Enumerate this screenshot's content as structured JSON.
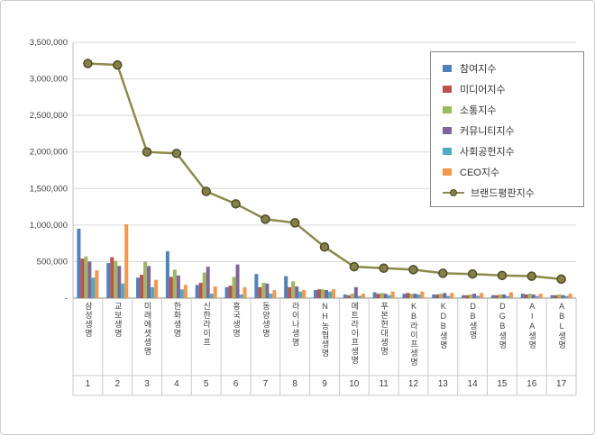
{
  "chart_data": {
    "type": "bar",
    "title": "",
    "categories": [
      "삼성생명",
      "교보생명",
      "미래에셋생명",
      "한화생명",
      "신한라이프",
      "흥국생명",
      "동양생명",
      "라이나생명",
      "NH농협생명",
      "메트라이프생명",
      "푸본현대생명",
      "KB라이프생명",
      "KDB생명",
      "DB생명",
      "DGB생명",
      "AIA생명",
      "ABL생명"
    ],
    "ranks": [
      "1",
      "2",
      "3",
      "4",
      "5",
      "6",
      "7",
      "8",
      "9",
      "10",
      "11",
      "12",
      "13",
      "14",
      "15",
      "16",
      "17"
    ],
    "bar_series": [
      {
        "name": "참여지수",
        "color": "#4F81BD",
        "values": [
          950000,
          480000,
          280000,
          640000,
          180000,
          150000,
          330000,
          300000,
          110000,
          50000,
          80000,
          60000,
          50000,
          40000,
          40000,
          60000,
          40000
        ]
      },
      {
        "name": "미디어지수",
        "color": "#C0504D",
        "values": [
          540000,
          560000,
          320000,
          290000,
          210000,
          170000,
          150000,
          150000,
          120000,
          40000,
          60000,
          70000,
          50000,
          40000,
          40000,
          50000,
          40000
        ]
      },
      {
        "name": "소통지수",
        "color": "#9BBB59",
        "values": [
          570000,
          510000,
          500000,
          390000,
          350000,
          290000,
          210000,
          230000,
          120000,
          60000,
          70000,
          60000,
          60000,
          50000,
          50000,
          60000,
          50000
        ]
      },
      {
        "name": "커뮤니티지수",
        "color": "#8064A2",
        "values": [
          500000,
          440000,
          440000,
          310000,
          430000,
          460000,
          200000,
          160000,
          110000,
          150000,
          60000,
          60000,
          70000,
          60000,
          50000,
          50000,
          40000
        ]
      },
      {
        "name": "사회공헌지수",
        "color": "#4BACC6",
        "values": [
          280000,
          200000,
          150000,
          120000,
          60000,
          50000,
          60000,
          90000,
          90000,
          30000,
          40000,
          50000,
          30000,
          30000,
          30000,
          30000,
          30000
        ]
      },
      {
        "name": "CEO지수",
        "color": "#F79646",
        "values": [
          380000,
          1010000,
          250000,
          180000,
          160000,
          150000,
          110000,
          110000,
          120000,
          60000,
          90000,
          90000,
          70000,
          70000,
          80000,
          60000,
          60000
        ]
      }
    ],
    "line_series": {
      "name": "브랜드평판지수",
      "color": "#8C8A4B",
      "marker_fill": "#848146",
      "marker_stroke": "#4e4c29",
      "values": [
        3210000,
        3190000,
        2000000,
        1980000,
        1460000,
        1290000,
        1080000,
        1030000,
        700000,
        430000,
        410000,
        390000,
        340000,
        330000,
        310000,
        300000,
        260000
      ]
    },
    "yticks": [
      {
        "value": 0,
        "label": "-"
      },
      {
        "value": 500000,
        "label": "500,000"
      },
      {
        "value": 1000000,
        "label": "1,000,000"
      },
      {
        "value": 1500000,
        "label": "1,500,000"
      },
      {
        "value": 2000000,
        "label": "2,000,000"
      },
      {
        "value": 2500000,
        "label": "2,500,000"
      },
      {
        "value": 3000000,
        "label": "3,000,000"
      },
      {
        "value": 3500000,
        "label": "3,500,000"
      }
    ],
    "ylim": [
      0,
      3500000
    ],
    "grid": true,
    "legend_position": "upper-right"
  }
}
